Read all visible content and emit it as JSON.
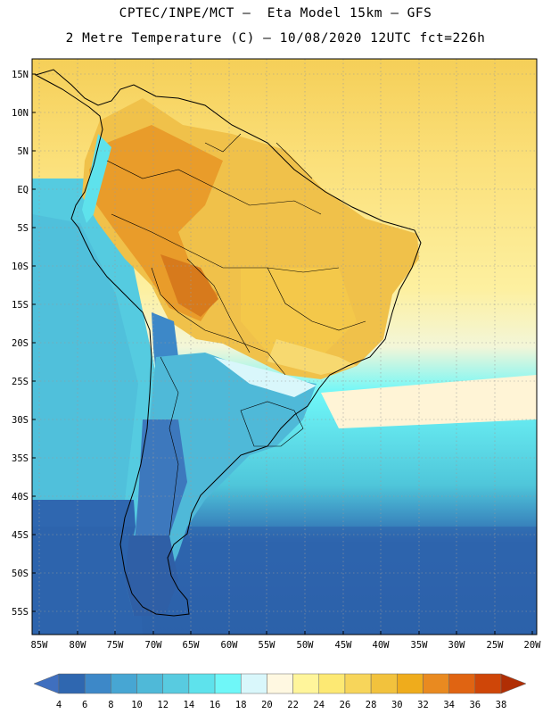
{
  "header": {
    "line1": "CPTEC/INPE/MCT –  Eta Model 15km – GFS",
    "line2": "2 Metre Temperature (C) – 10/08/2020 12UTC fct=226h"
  },
  "map": {
    "lat_labels": [
      "15N",
      "10N",
      "5N",
      "EQ",
      "5S",
      "10S",
      "15S",
      "20S",
      "25S",
      "30S",
      "35S",
      "40S",
      "45S",
      "50S",
      "55S"
    ],
    "lon_labels": [
      "85W",
      "80W",
      "75W",
      "70W",
      "65W",
      "60W",
      "55W",
      "50W",
      "45W",
      "40W",
      "35W",
      "30W",
      "25W",
      "20W"
    ],
    "extent": {
      "lon_min": -85,
      "lon_max": -20,
      "lat_min": -57.5,
      "lat_max": 17
    }
  },
  "legend": {
    "labels": [
      "4",
      "6",
      "8",
      "10",
      "12",
      "14",
      "16",
      "18",
      "20",
      "22",
      "24",
      "26",
      "28",
      "30",
      "32",
      "34",
      "36",
      "38"
    ],
    "colors": [
      "#3f6fbf",
      "#2f67b0",
      "#3d88c8",
      "#47a6d3",
      "#4fb9d8",
      "#58cbe0",
      "#5ee2ec",
      "#6ff7f8",
      "#d9f7fb",
      "#fff8e1",
      "#fff59b",
      "#fde973",
      "#f7d55a",
      "#f2c23d",
      "#efac1c",
      "#e98a20",
      "#e06412",
      "#cf4608",
      "#b02e04"
    ]
  }
}
